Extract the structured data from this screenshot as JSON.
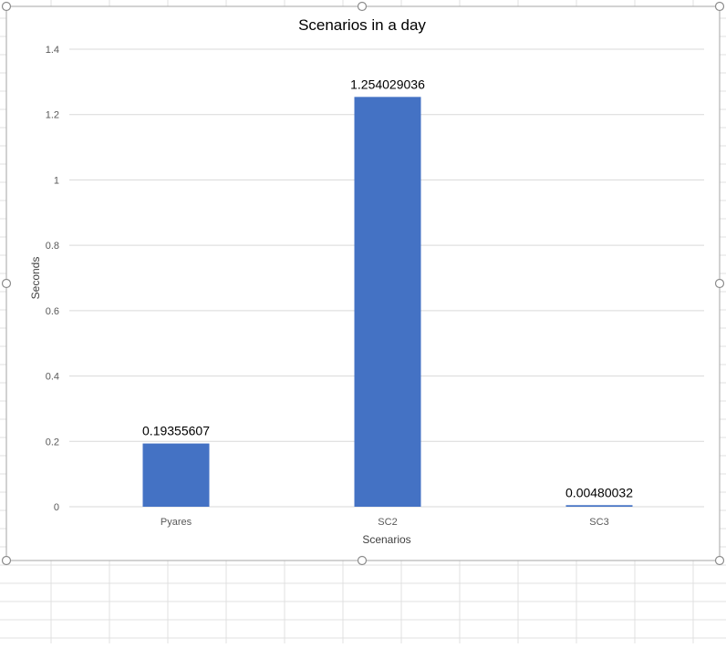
{
  "chart_data": {
    "type": "bar",
    "title": "Scenarios in a day",
    "xlabel": "Scenarios",
    "ylabel": "Seconds",
    "categories": [
      "Pyares",
      "SC2",
      "SC3"
    ],
    "values": [
      0.19355607,
      1.254029036,
      0.00480032
    ],
    "data_labels": [
      "0.19355607",
      "1.254029036",
      "0.00480032"
    ],
    "ylim": [
      0,
      1.4
    ],
    "yticks": [
      0,
      0.2,
      0.4,
      0.6,
      0.8,
      1,
      1.2,
      1.4
    ],
    "ytick_labels": [
      "0",
      "0.2",
      "0.4",
      "0.6",
      "0.8",
      "1",
      "1.2",
      "1.4"
    ],
    "grid": true,
    "legend": "none"
  },
  "colors": {
    "bar": "#4472C4",
    "gridline": "#D9D9D9",
    "axis_text": "#595959",
    "title_text": "#000000",
    "sheet_grid": "#E1E1E1",
    "frame": "#A6A6A6",
    "handle": "#8C8C8C"
  }
}
